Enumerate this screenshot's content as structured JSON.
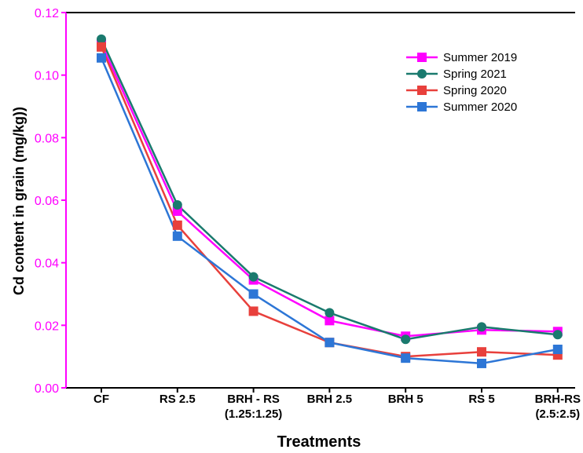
{
  "chart_data": {
    "type": "line",
    "title": "",
    "xlabel": "Treatments",
    "ylabel": "Cd content in grain (mg/kg))",
    "categories": [
      [
        "CF"
      ],
      [
        "RS 2.5"
      ],
      [
        "BRH - RS",
        "(1.25:1.25)"
      ],
      [
        "BRH 2.5"
      ],
      [
        "BRH 5"
      ],
      [
        "RS 5"
      ],
      [
        "BRH-RS",
        "(2.5:2.5)"
      ]
    ],
    "ylim": [
      0.0,
      0.12
    ],
    "yticks": [
      "0.00",
      "0.02",
      "0.04",
      "0.06",
      "0.08",
      "0.10",
      "0.12"
    ],
    "grid": false,
    "legend_position": "top-right",
    "y_axis_color": "#ff00ff",
    "series": [
      {
        "name": "Summer 2019",
        "color": "#ff00ff",
        "marker": "square",
        "values": [
          0.11,
          0.0565,
          0.0345,
          0.0215,
          0.0165,
          0.0185,
          0.018
        ]
      },
      {
        "name": "Spring 2021",
        "color": "#1a7a6e",
        "marker": "circle",
        "values": [
          0.1115,
          0.0585,
          0.0355,
          0.024,
          0.0155,
          0.0195,
          0.017
        ]
      },
      {
        "name": "Spring 2020",
        "color": "#e8403c",
        "marker": "square",
        "values": [
          0.109,
          0.052,
          0.0245,
          0.0145,
          0.01,
          0.0115,
          0.0105
        ]
      },
      {
        "name": "Summer 2020",
        "color": "#2d76d6",
        "marker": "square",
        "values": [
          0.1055,
          0.0485,
          0.03,
          0.0145,
          0.0095,
          0.0078,
          0.0123
        ]
      }
    ]
  }
}
